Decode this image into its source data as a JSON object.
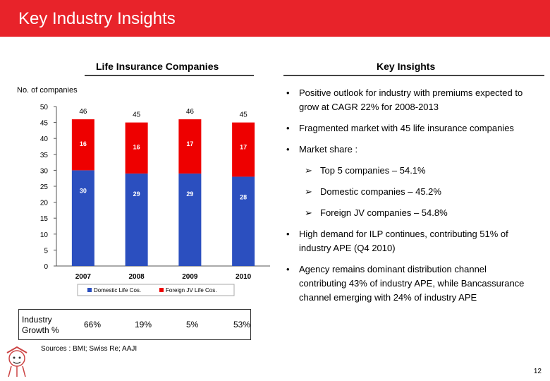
{
  "header": {
    "title": "Key Industry Insights"
  },
  "left_title": "Life Insurance Companies",
  "right_title": "Key Insights",
  "ylabel": "No. of companies",
  "chart_data": {
    "type": "bar",
    "stacked": true,
    "categories": [
      "2007",
      "2008",
      "2009",
      "2010"
    ],
    "series": [
      {
        "name": "Domestic Life Cos.",
        "values": [
          30,
          29,
          29,
          28
        ],
        "color": "#2b4fbf"
      },
      {
        "name": "Foreign JV Life Cos.",
        "values": [
          16,
          16,
          17,
          17
        ],
        "color": "#ee0000"
      }
    ],
    "totals": [
      "46",
      "45",
      "46",
      "45"
    ],
    "ylim": [
      0,
      50
    ],
    "yticks": [
      "0",
      "5",
      "10",
      "15",
      "20",
      "25",
      "30",
      "35",
      "40",
      "45",
      "50"
    ],
    "legend": [
      "Domestic Life Cos.",
      "Foreign JV Life Cos."
    ]
  },
  "growth": {
    "label_line1": "Industry",
    "label_line2": "Growth %",
    "values": [
      "66%",
      "19%",
      "5%",
      "53%"
    ]
  },
  "insights": {
    "b1": "Positive outlook for industry with premiums expected to grow at CAGR 22% for 2008-2013",
    "b2": "Fragmented market with 45 life insurance companies",
    "b3": "Market share :",
    "s1": "Top 5 companies – 54.1%",
    "s2": "Domestic companies – 45.2%",
    "s3": "Foreign JV companies – 54.8%",
    "b4": "High demand for ILP continues, contributing 51% of industry APE (Q4 2010)",
    "b5": "Agency remains dominant distribution channel contributing 43% of industry APE, while Bancassurance channel emerging with 24% of industry APE"
  },
  "sources": "Sources : BMI; Swiss Re; AAJI",
  "page_number": "12"
}
